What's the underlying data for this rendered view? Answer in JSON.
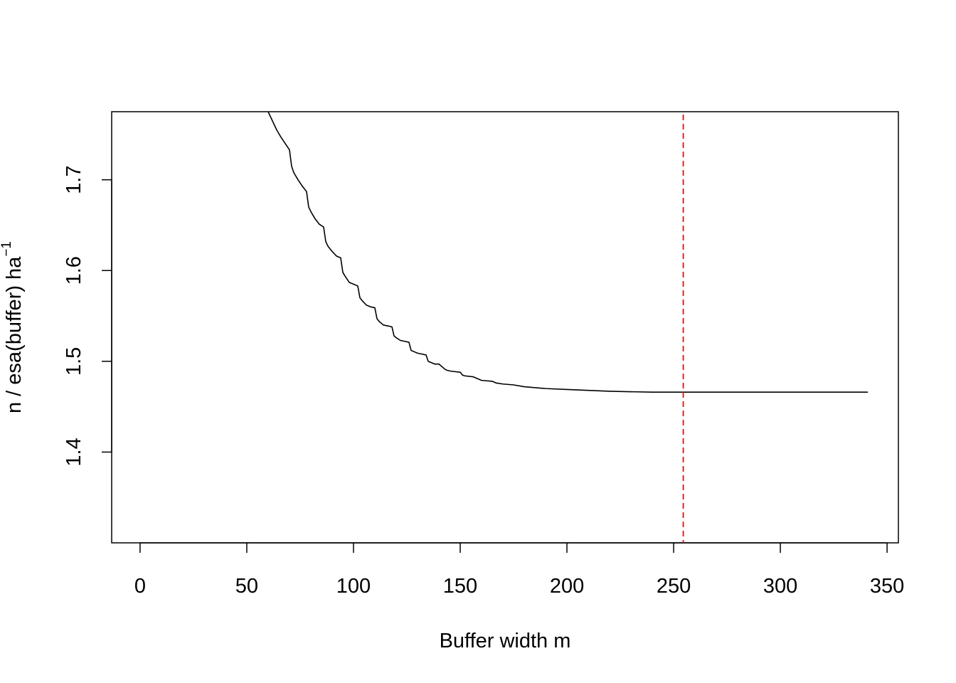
{
  "chart_data": {
    "type": "line",
    "title": "",
    "xlabel": "Buffer width  m",
    "ylabel": "n / esa(buffer)   ha",
    "ylabel_superscript": "−1",
    "xlim": [
      -13.3,
      355.3
    ],
    "ylim": [
      1.3,
      1.775
    ],
    "x_ticks": [
      0,
      50,
      100,
      150,
      200,
      250,
      300,
      350
    ],
    "x_tick_labels": [
      "0",
      "50",
      "100",
      "150",
      "200",
      "250",
      "300",
      "350"
    ],
    "y_ticks": [
      1.4,
      1.5,
      1.6,
      1.7
    ],
    "y_tick_labels": [
      "1.4",
      "1.5",
      "1.6",
      "1.7"
    ],
    "grid": false,
    "series": [
      {
        "color": "#000000",
        "x": [
          60,
          62,
          64,
          66,
          68,
          70,
          71,
          72,
          74,
          76,
          78,
          79,
          80,
          82,
          84,
          86,
          87,
          88,
          90,
          92,
          94,
          95,
          96,
          98,
          100,
          102,
          103,
          104,
          106,
          108,
          110,
          111,
          112,
          114,
          116,
          118,
          119,
          120,
          122,
          124,
          126,
          127,
          128,
          130,
          132,
          134,
          135,
          136,
          138,
          140,
          143,
          144,
          146,
          150,
          151,
          152,
          156,
          159,
          160,
          165,
          167,
          170,
          175,
          180,
          190,
          200,
          210,
          220,
          240,
          255,
          270,
          300,
          341
        ],
        "y": [
          1.775,
          1.765,
          1.755,
          1.747,
          1.74,
          1.733,
          1.715,
          1.708,
          1.7,
          1.693,
          1.687,
          1.67,
          1.665,
          1.657,
          1.651,
          1.648,
          1.632,
          1.627,
          1.621,
          1.616,
          1.614,
          1.598,
          1.594,
          1.587,
          1.585,
          1.583,
          1.57,
          1.567,
          1.562,
          1.56,
          1.559,
          1.547,
          1.544,
          1.54,
          1.539,
          1.538,
          1.528,
          1.526,
          1.523,
          1.522,
          1.521,
          1.512,
          1.511,
          1.509,
          1.508,
          1.507,
          1.5,
          1.499,
          1.497,
          1.497,
          1.491,
          1.49,
          1.489,
          1.488,
          1.485,
          1.484,
          1.483,
          1.48,
          1.479,
          1.478,
          1.476,
          1.475,
          1.474,
          1.472,
          1.47,
          1.469,
          1.468,
          1.467,
          1.466,
          1.466,
          1.466,
          1.466,
          1.466
        ]
      }
    ],
    "reference_lines": [
      {
        "axis": "x",
        "value": 254.5,
        "color": "#ff0000",
        "style": "dashed"
      }
    ]
  }
}
